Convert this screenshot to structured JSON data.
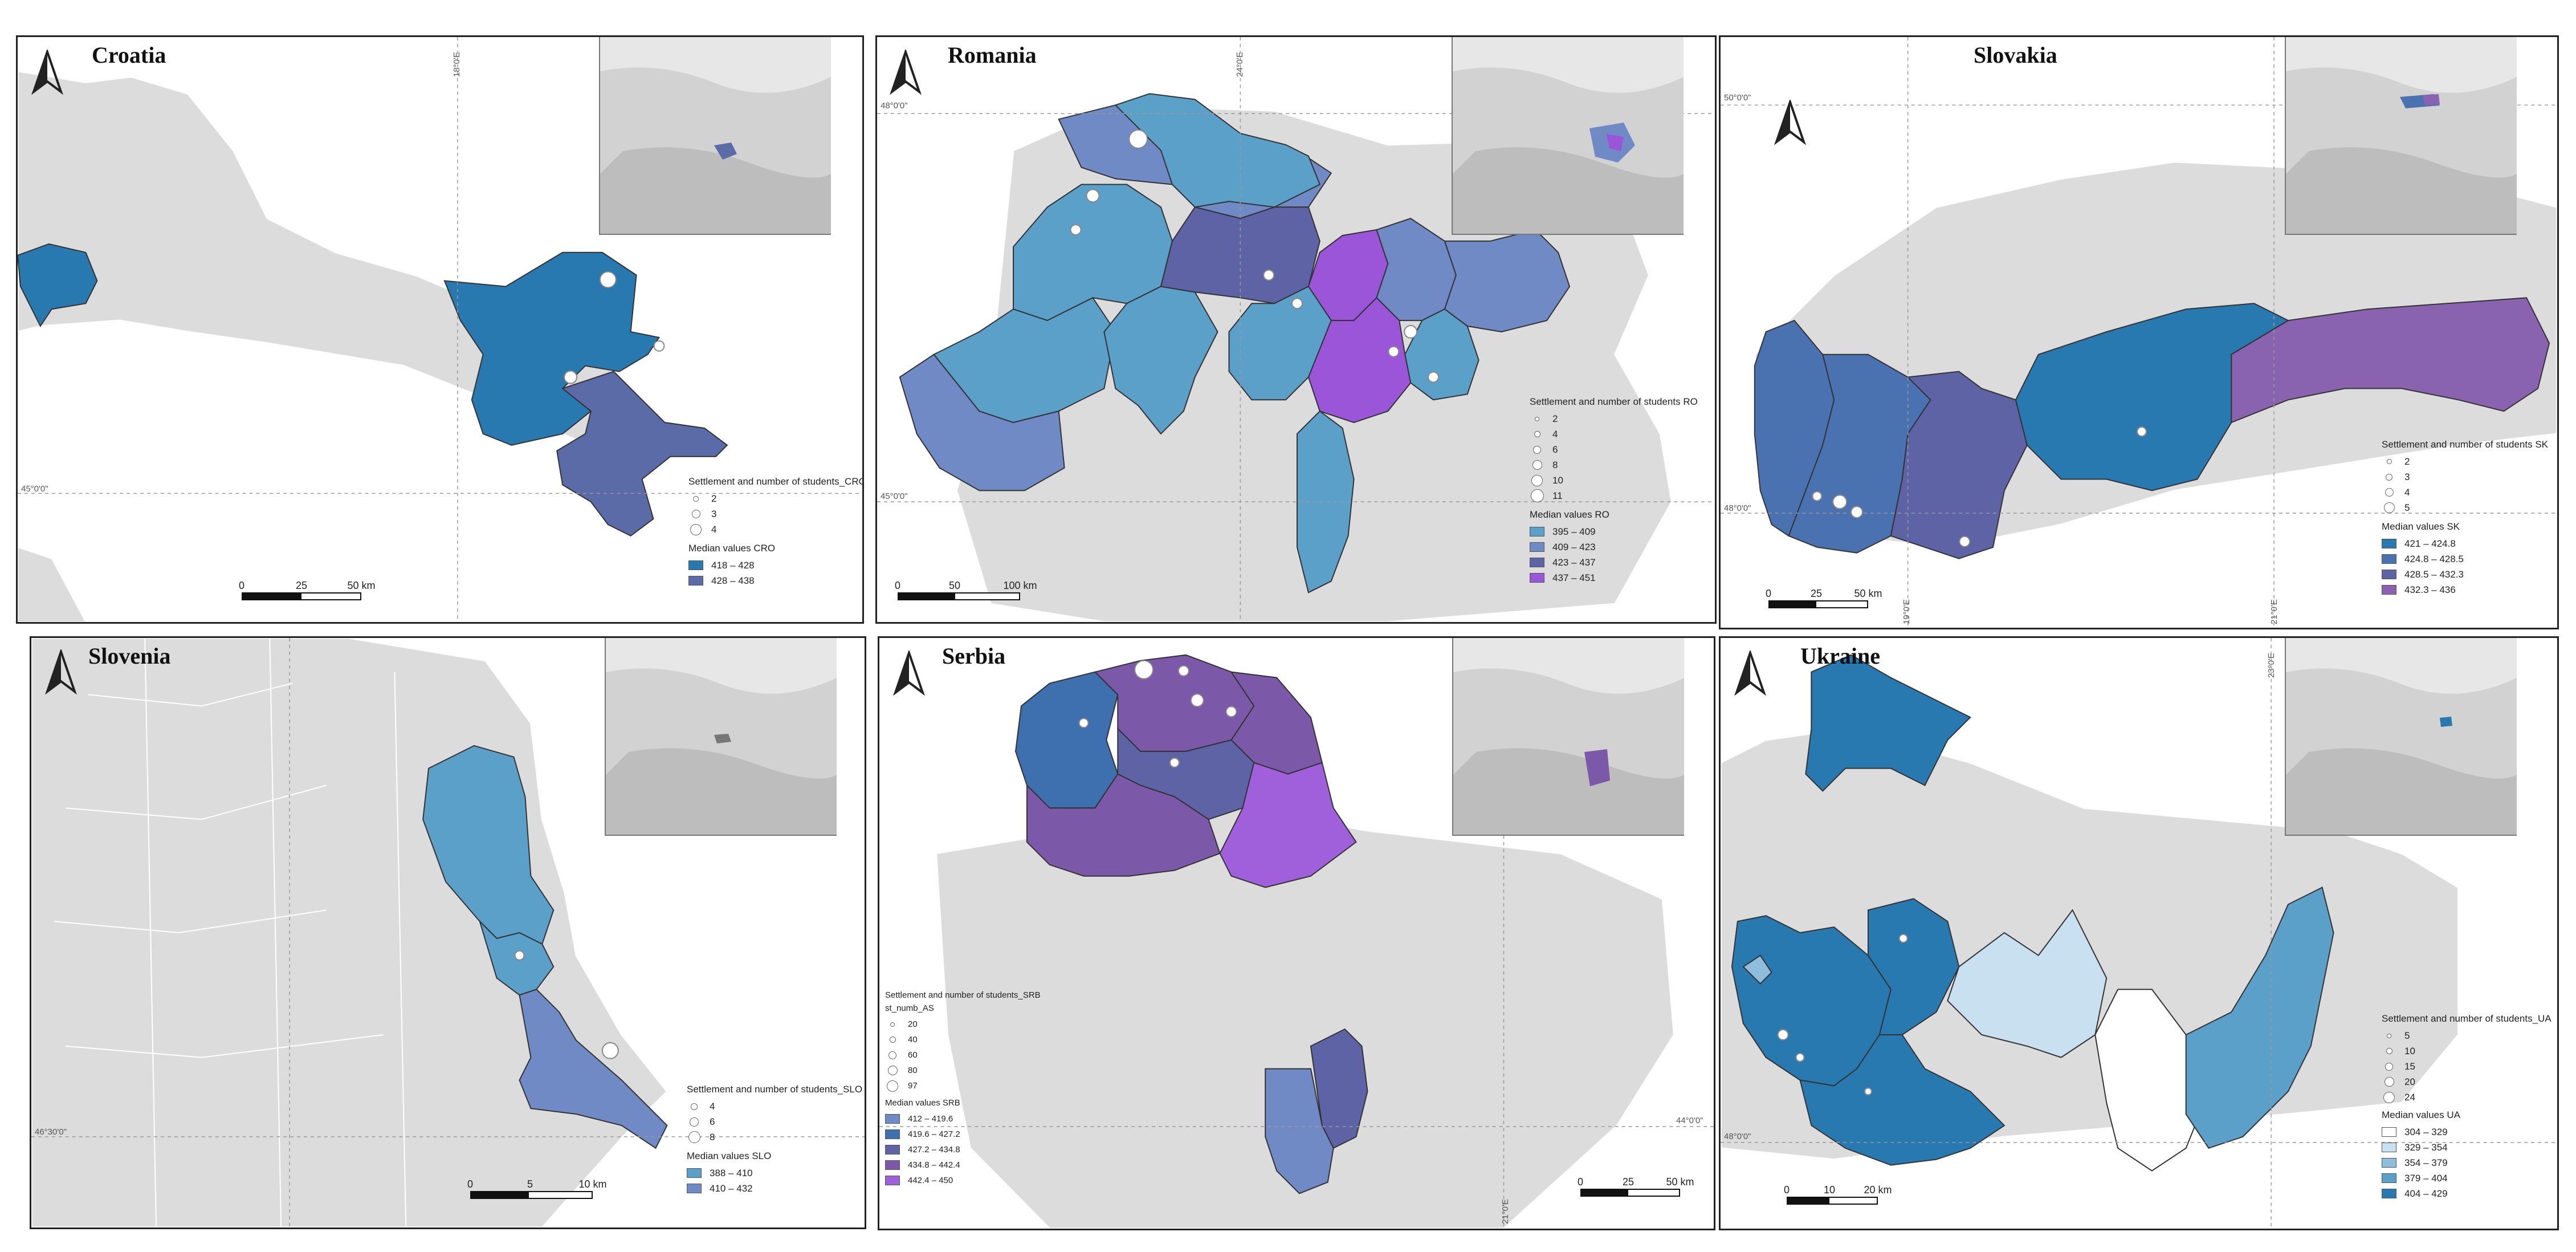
{
  "colors": {
    "land": "#dcdcdc",
    "border": "#ffffff",
    "blue_strong": "#2979b1",
    "blue_mid": "#3f82b5",
    "blue_light": "#5aa0c8",
    "sky": "#b9d6ea",
    "slate": "#5b6ba8",
    "indigo": "#6273b8",
    "purple": "#8a63b0",
    "violet": "#9a55d9",
    "violet_light": "#a060dc",
    "inset_bg": "#d2d2d2"
  },
  "panels": {
    "croatia": {
      "title": "Croatia",
      "coords": {
        "lon": "18°0'E",
        "lat": "45°0'0\""
      },
      "legend": {
        "points_title": "Settlement and number of students_CRO",
        "points": [
          "2",
          "3",
          "4"
        ],
        "median_title": "Median values CRO",
        "classes": [
          {
            "label": "418 – 428",
            "color": "#2979b1"
          },
          {
            "label": "428 – 438",
            "color": "#5b6ba8"
          }
        ]
      },
      "scale": {
        "labels": [
          "0",
          "25",
          "50 km"
        ]
      }
    },
    "romania": {
      "title": "Romania",
      "coords": {
        "lon": "24°0'E",
        "lat_top": "48°0'0\"",
        "lat_bottom": "45°0'0\""
      },
      "legend": {
        "points_title": "Settlement and number of students RO",
        "points": [
          "2",
          "4",
          "6",
          "8",
          "10",
          "11"
        ],
        "median_title": "Median values RO",
        "classes": [
          {
            "label": "395 – 409",
            "color": "#5aa0c8"
          },
          {
            "label": "409 – 423",
            "color": "#6f8ac4"
          },
          {
            "label": "423 – 437",
            "color": "#5e63a6"
          },
          {
            "label": "437 – 451",
            "color": "#9a55d9"
          }
        ]
      },
      "scale": {
        "labels": [
          "0",
          "50",
          "100 km"
        ]
      }
    },
    "slovakia": {
      "title": "Slovakia",
      "coords": {
        "lon": "19°0'E",
        "lon2": "21°0'E",
        "lat_top": "50°0'0\"",
        "lat_bottom": "48°0'0\""
      },
      "legend": {
        "points_title": "Settlement and number of students SK",
        "points": [
          "2",
          "3",
          "4",
          "5"
        ],
        "median_title": "Median values SK",
        "classes": [
          {
            "label": "421 – 424.8",
            "color": "#2979b1"
          },
          {
            "label": "424.8 – 428.5",
            "color": "#4a72b0"
          },
          {
            "label": "428.5 – 432.3",
            "color": "#5e63a6"
          },
          {
            "label": "432.3 – 436",
            "color": "#8a63b0"
          }
        ]
      },
      "scale": {
        "labels": [
          "0",
          "25",
          "50 km"
        ]
      }
    },
    "slovenia": {
      "title": "Slovenia",
      "coords": {
        "lat": "46°30'0\""
      },
      "legend": {
        "points_title": "Settlement and number of students_SLO",
        "points": [
          "4",
          "6",
          "8"
        ],
        "median_title": "Median values SLO",
        "classes": [
          {
            "label": "388 – 410",
            "color": "#5aa0c8"
          },
          {
            "label": "410 – 432",
            "color": "#6f8ac4"
          }
        ]
      },
      "scale": {
        "labels": [
          "0",
          "5",
          "10 km"
        ]
      }
    },
    "serbia": {
      "title": "Serbia",
      "coords": {
        "lon": "21°0'E",
        "lat": "44°0'0\""
      },
      "legend": {
        "points_title": "Settlement and number of students_SRB",
        "points_subtitle": "st_numb_AS",
        "points": [
          "20",
          "40",
          "60",
          "80",
          "97"
        ],
        "median_title": "Median values SRB",
        "classes": [
          {
            "label": "412 – 419.6",
            "color": "#6f8ac4"
          },
          {
            "label": "419.6 – 427.2",
            "color": "#3e6fae"
          },
          {
            "label": "427.2 – 434.8",
            "color": "#5e63a6"
          },
          {
            "label": "434.8 – 442.4",
            "color": "#7c58a8"
          },
          {
            "label": "442.4 – 450",
            "color": "#a060dc"
          }
        ]
      },
      "scale": {
        "labels": [
          "0",
          "25",
          "50 km"
        ]
      }
    },
    "ukraine": {
      "title": "Ukraine",
      "coords": {
        "lon": "23°0'E",
        "lat": "48°0'0\""
      },
      "legend": {
        "points_title": "Settlement and number of students_UA",
        "points": [
          "5",
          "10",
          "15",
          "20",
          "24"
        ],
        "median_title": "Median values UA",
        "classes": [
          {
            "label": "304 – 329",
            "color": "#ffffff"
          },
          {
            "label": "329 – 354",
            "color": "#c9e0f0"
          },
          {
            "label": "354 – 379",
            "color": "#8fbedd"
          },
          {
            "label": "379 – 404",
            "color": "#5aa0c8"
          },
          {
            "label": "404 – 429",
            "color": "#2979b1"
          }
        ]
      },
      "scale": {
        "labels": [
          "0",
          "10",
          "20 km"
        ]
      }
    }
  }
}
